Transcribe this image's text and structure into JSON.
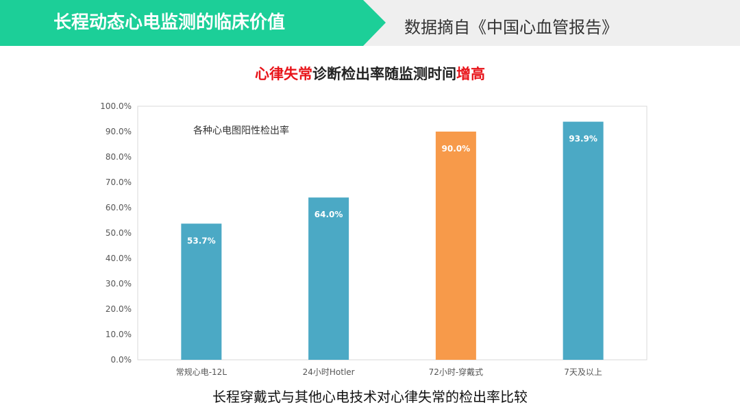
{
  "header": {
    "title": "长程动态心电监测的临床价值",
    "source": "数据摘自《中国心血管报告》"
  },
  "chart_title": {
    "part1": "心律失常",
    "part2": "诊断检出率随监测时间",
    "part3": "增高"
  },
  "caption": "长程穿戴式与其他心电技术对心律失常的检出率比较",
  "chart_data": {
    "type": "bar",
    "inner_label": "各种心电图阳性检出率",
    "categories": [
      "常规心电-12L",
      "24小时Hotler",
      "72小时-穿戴式",
      "7天及以上"
    ],
    "values": [
      53.7,
      64.0,
      90.0,
      93.9
    ],
    "value_labels": [
      "53.7%",
      "64.0%",
      "90.0%",
      "93.9%"
    ],
    "bar_colors": [
      "#4ba9c5",
      "#4ba9c5",
      "#f79a4a",
      "#4ba9c5"
    ],
    "ylim": [
      0,
      100
    ],
    "yticks": [
      "0.0%",
      "10.0%",
      "20.0%",
      "30.0%",
      "40.0%",
      "50.0%",
      "60.0%",
      "70.0%",
      "80.0%",
      "90.0%",
      "100.0%"
    ],
    "grid": false,
    "legend": "none"
  }
}
